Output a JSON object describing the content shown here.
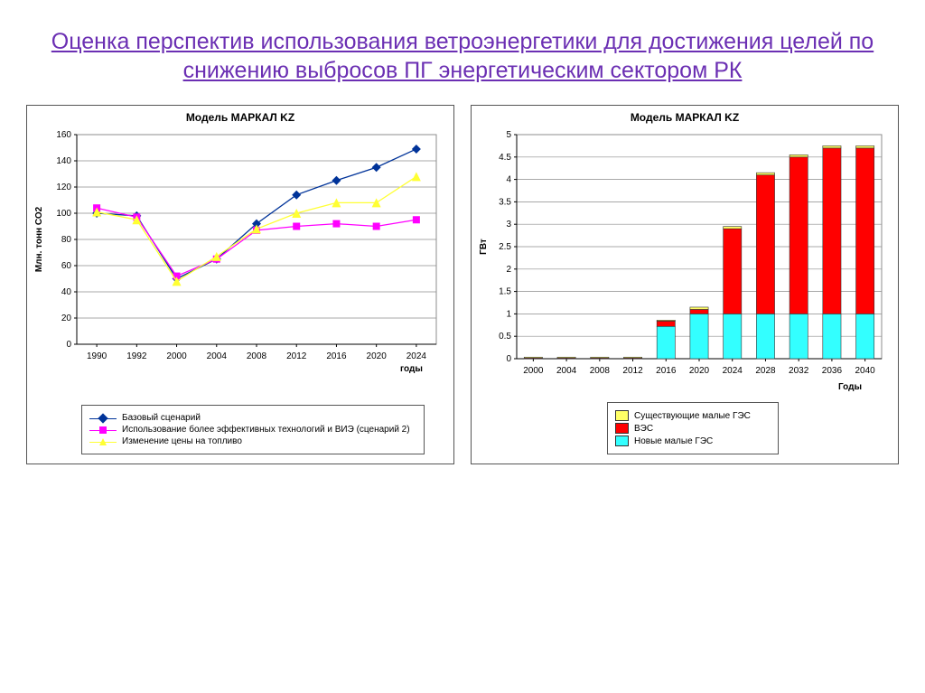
{
  "title": "Оценка перспектив использования ветроэнергетики для достижения целей по снижению выбросов ПГ энергетическим сектором РК",
  "left_chart": {
    "title": "Модель МАРКАЛ KZ",
    "type": "line",
    "y_label": "Млн. тонн СО2",
    "x_label": "годы",
    "categories": [
      "1990",
      "1992",
      "2000",
      "2004",
      "2008",
      "2012",
      "2016",
      "2020",
      "2024"
    ],
    "ylim": [
      0,
      160
    ],
    "ytick_step": 20,
    "series": [
      {
        "name": "Базовый сценарий",
        "color": "#003399",
        "marker": "diamond",
        "values": [
          100,
          98,
          50,
          65,
          92,
          114,
          125,
          135,
          149
        ]
      },
      {
        "name": "Использование  более эффективных технологий и ВИЭ (сценарий 2)",
        "color": "#ff00ff",
        "marker": "square",
        "values": [
          104,
          97,
          52,
          65,
          87,
          90,
          92,
          90,
          95
        ]
      },
      {
        "name": "Изменение цены на топливо",
        "color": "#ffff33",
        "marker": "triangle",
        "values": [
          101,
          95,
          48,
          67,
          88,
          100,
          108,
          108,
          128
        ]
      }
    ],
    "background_color": "#ffffff",
    "grid_color": "#8c8c8c",
    "axis_font_size": 10,
    "title_font_size": 12,
    "line_width": 1.3,
    "marker_size": 5
  },
  "right_chart": {
    "title": "Модель МАРКАЛ KZ",
    "type": "stacked-bar",
    "y_label": "ГВт",
    "x_label": "Годы",
    "categories": [
      "2000",
      "2004",
      "2008",
      "2012",
      "2016",
      "2020",
      "2024",
      "2028",
      "2032",
      "2036",
      "2040"
    ],
    "ylim": [
      0,
      5
    ],
    "ytick_step": 0.5,
    "legend_order": [
      "Существующие малые ГЭС",
      "ВЭС",
      "Новые малые ГЭС"
    ],
    "series": [
      {
        "name": "Новые малые ГЭС",
        "color": "#33ffff",
        "values": [
          0,
          0,
          0,
          0,
          0.72,
          1.0,
          1.0,
          1.0,
          1.0,
          1.0,
          1.0
        ]
      },
      {
        "name": "ВЭС",
        "color": "#ff0000",
        "values": [
          0.015,
          0.015,
          0.015,
          0.015,
          0.12,
          0.1,
          1.9,
          3.1,
          3.5,
          3.7,
          3.7
        ]
      },
      {
        "name": "Существующие малые ГЭС",
        "color": "#ffff66",
        "values": [
          0.02,
          0.02,
          0.02,
          0.02,
          0.02,
          0.05,
          0.05,
          0.05,
          0.05,
          0.05,
          0.05
        ]
      }
    ],
    "background_color": "#ffffff",
    "grid_color": "#8c8c8c",
    "border_color": "#333333",
    "bar_width": 0.55,
    "axis_font_size": 10,
    "title_font_size": 12
  }
}
